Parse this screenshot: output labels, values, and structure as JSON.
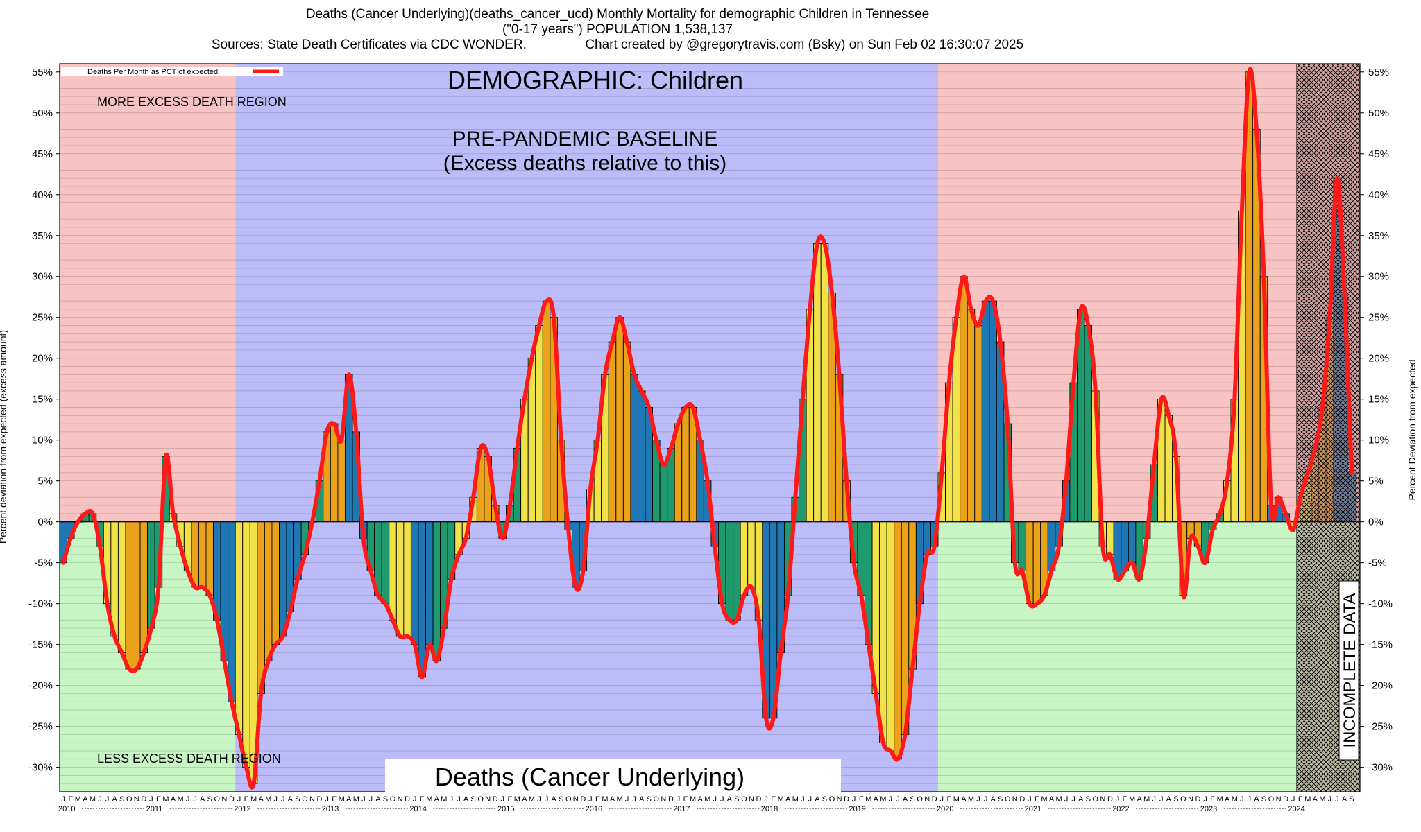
{
  "header": {
    "line1": "Deaths (Cancer Underlying)(deaths_cancer_ucd) Monthly Mortality for demographic Children in Tennessee",
    "line2": "(\"0-17 years\") POPULATION 1,538,137",
    "line3": "Sources: State Death Certificates via CDC WONDER.                Chart created by @gregorytravis.com (Bsky) on Sun Feb 02 16:30:07 2025"
  },
  "colors": {
    "excess_region": "#f8c3c3",
    "less_region": "#c7f5c3",
    "baseline_region": "#bcbcf8",
    "incomplete_region": "#b48a8a",
    "line": "#ff1a1a",
    "bar_palette": [
      "#1f77b4",
      "#1f9a6e",
      "#f2e24a",
      "#e9a21a"
    ]
  },
  "chart_data": {
    "type": "bar",
    "title": "DEMOGRAPHIC: Children",
    "ylabel": "Percent deviation from expected (excess amount)",
    "ylabel_right": "Percent Deviation from expected",
    "ylim": [
      -33,
      56
    ],
    "yticks": [
      -30,
      -25,
      -20,
      -15,
      -10,
      -5,
      0,
      5,
      10,
      15,
      20,
      25,
      30,
      35,
      40,
      45,
      50,
      55
    ],
    "grid": true,
    "legend": {
      "label": "Deaths Per Month as PCT of expected",
      "position": "top-left"
    },
    "month_letters": [
      "J",
      "F",
      "M",
      "A",
      "M",
      "J",
      "J",
      "A",
      "S",
      "O",
      "N",
      "D"
    ],
    "years": [
      "2010",
      "2011",
      "2012",
      "2013",
      "2014",
      "2015",
      "2016",
      "2017",
      "2018",
      "2019",
      "2020",
      "2021",
      "2022",
      "2023",
      "2024"
    ],
    "baseline_years": [
      "2012",
      "2013",
      "2014",
      "2015",
      "2016",
      "2017",
      "2018",
      "2019"
    ],
    "incomplete_from": "2024-02",
    "annotations": {
      "more_region": "MORE EXCESS DEATH REGION",
      "less_region": "LESS EXCESS DEATH REGION",
      "baseline_title": "PRE-PANDEMIC BASELINE",
      "baseline_subtitle": "(Excess deaths relative to this)",
      "incomplete": "INCOMPLETE DATA",
      "bottom_label": "Deaths (Cancer Underlying)"
    },
    "series": [
      {
        "name": "Deaths Per Month as PCT of expected",
        "values": [
          -5,
          -2,
          0,
          1,
          1,
          -3,
          -10,
          -14,
          -16,
          -18,
          -18,
          -16,
          -13,
          -8,
          8,
          1,
          -3,
          -6,
          -8,
          -8,
          -9,
          -12,
          -17,
          -22,
          -26,
          -30,
          -32,
          -21,
          -17,
          -15,
          -14,
          -11,
          -7,
          -4,
          0,
          5,
          11,
          12,
          10,
          18,
          11,
          -2,
          -6,
          -9,
          -10,
          -12,
          -14,
          -14,
          -15,
          -19,
          -15,
          -17,
          -13,
          -7,
          -4,
          -2,
          3,
          9,
          8,
          2,
          -2,
          2,
          9,
          15,
          20,
          24,
          27,
          25,
          10,
          -1,
          -8,
          -6,
          4,
          10,
          18,
          22,
          25,
          22,
          18,
          16,
          14,
          10,
          7,
          9,
          12,
          14,
          14,
          10,
          5,
          -3,
          -10,
          -12,
          -12,
          -9,
          -8,
          -12,
          -24,
          -24,
          -16,
          -9,
          3,
          15,
          26,
          34,
          34,
          28,
          18,
          5,
          -5,
          -9,
          -15,
          -21,
          -27,
          -28,
          -29,
          -26,
          -18,
          -10,
          -4,
          -3,
          6,
          17,
          25,
          30,
          26,
          24,
          27,
          27,
          22,
          12,
          -5,
          -6,
          -10,
          -10,
          -9,
          -6,
          -3,
          5,
          17,
          26,
          24,
          16,
          -3,
          -4,
          -7,
          -6,
          -5,
          -7,
          -2,
          7,
          15,
          13,
          8,
          -9,
          -2,
          -3,
          -5,
          -1,
          1,
          5,
          15,
          38,
          55,
          48,
          30,
          2,
          3,
          1,
          -1,
          3,
          6,
          9,
          14,
          25,
          42,
          28,
          6
        ]
      }
    ]
  }
}
